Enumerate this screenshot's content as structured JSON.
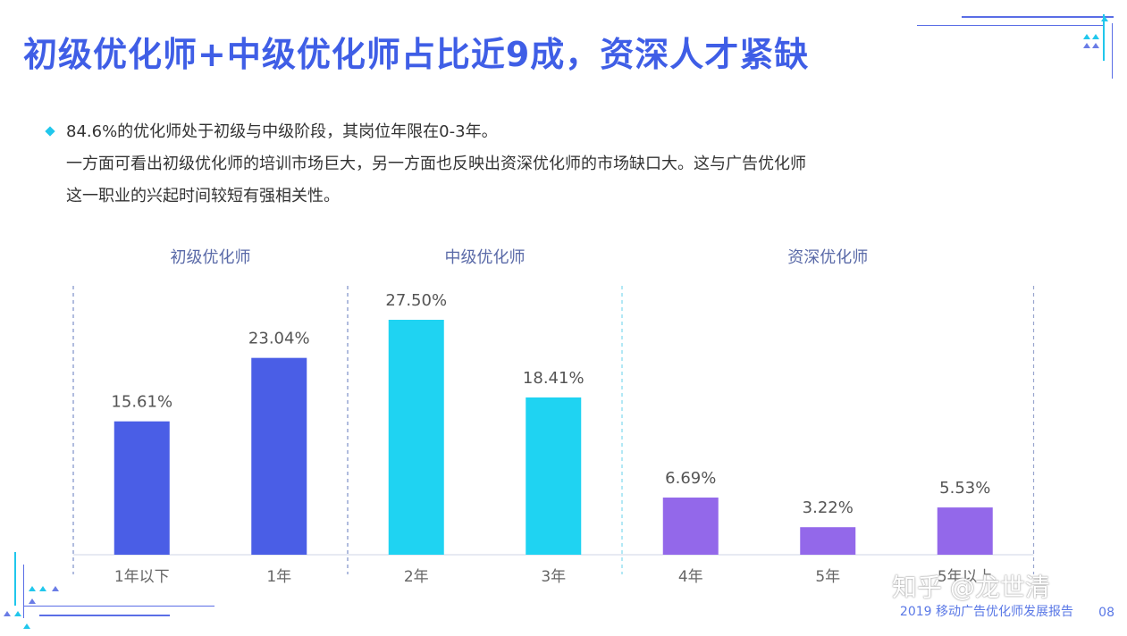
{
  "title": "初级优化师+中级优化师占比近9成，资深人才紧缺",
  "bullets": [
    "84.6%的优化师处于初级与中级阶段，其岗位年限在0-3年。",
    "一方面可看出初级优化师的培训市场巨大，另一方面也反映出资深优化师的市场缺口大。这与广告优化师",
    "这一职业的兴起时间较短有强相关性。"
  ],
  "chart_data": {
    "type": "bar",
    "categories": [
      "1年以下",
      "1年",
      "2年",
      "3年",
      "4年",
      "5年",
      "5年以上"
    ],
    "values": [
      15.61,
      23.04,
      27.5,
      18.41,
      6.69,
      3.22,
      5.53
    ],
    "data_labels": [
      "15.61%",
      "23.04%",
      "27.50%",
      "18.41%",
      "6.69%",
      "3.22%",
      "5.53%"
    ],
    "groups": [
      {
        "name": "初级优化师",
        "categories": [
          "1年以下",
          "1年"
        ],
        "color": "#4a5ee6"
      },
      {
        "name": "中级优化师",
        "categories": [
          "2年",
          "3年"
        ],
        "color": "#1fd3f2"
      },
      {
        "name": "资深优化师",
        "categories": [
          "4年",
          "5年",
          "5年以上"
        ],
        "color": "#9368ea"
      }
    ],
    "ylim": [
      0,
      30
    ],
    "grid": false
  },
  "footer": {
    "report": "2019 移动广告优化师发展报告",
    "page": "08"
  },
  "watermark": "知乎 @龙世清",
  "colors": {
    "title": "#3f5ee6",
    "accent": "#21c7ec",
    "divider": "#8fa0c8"
  }
}
